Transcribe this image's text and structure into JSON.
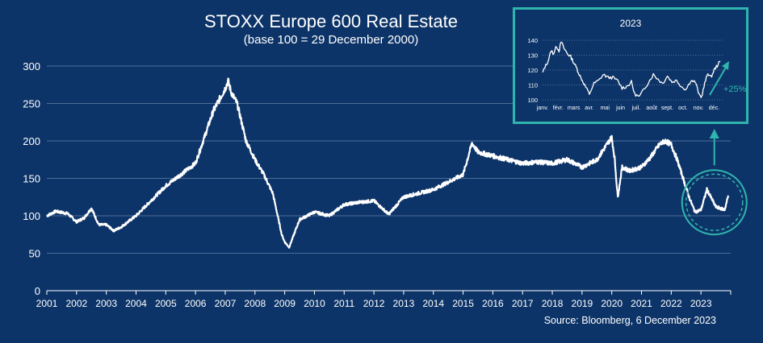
{
  "chart_data": [
    {
      "type": "line",
      "title": "STOXX Europe 600 Real Estate",
      "subtitle": "(base 100 = 29 December 2000)",
      "xlabel": "",
      "ylabel": "",
      "ylim": [
        0,
        300
      ],
      "xlim": [
        2001,
        2024
      ],
      "y_ticks": [
        "0",
        "50",
        "100",
        "150",
        "200",
        "250",
        "300"
      ],
      "x_ticks": [
        "2001",
        "2002",
        "2003",
        "2004",
        "2005",
        "2006",
        "2007",
        "2008",
        "2009",
        "2010",
        "2011",
        "2012",
        "2013",
        "2014",
        "2015",
        "2016",
        "2017",
        "2018",
        "2019",
        "2020",
        "2021",
        "2022",
        "2023"
      ],
      "grid": "horizontal",
      "line_color": "#ffffff",
      "series": [
        {
          "x": [
            2001.0,
            2001.3,
            2001.7,
            2002.0,
            2002.25,
            2002.5,
            2002.75,
            2003.0,
            2003.25,
            2003.5,
            2004.0,
            2004.5,
            2005.0,
            2005.5,
            2006.0,
            2006.3,
            2006.6,
            2007.0,
            2007.1,
            2007.2,
            2007.4,
            2007.7,
            2008.0,
            2008.3,
            2008.6,
            2008.9,
            2009.0,
            2009.15,
            2009.5,
            2010.0,
            2010.5,
            2011.0,
            2011.5,
            2012.0,
            2012.5,
            2013.0,
            2013.5,
            2014.0,
            2014.5,
            2015.0,
            2015.3,
            2015.5,
            2016.0,
            2016.5,
            2017.0,
            2017.5,
            2018.0,
            2018.5,
            2019.0,
            2019.5,
            2020.0,
            2020.1,
            2020.2,
            2020.35,
            2020.6,
            2021.0,
            2021.3,
            2021.6,
            2021.8,
            2022.0,
            2022.2,
            2022.4,
            2022.6,
            2022.8,
            2023.0,
            2023.2,
            2023.5,
            2023.8,
            2023.92
          ],
          "y": [
            100,
            106,
            103,
            92,
            97,
            110,
            88,
            88,
            80,
            85,
            100,
            120,
            140,
            155,
            170,
            205,
            240,
            270,
            280,
            265,
            250,
            200,
            175,
            155,
            130,
            75,
            65,
            58,
            95,
            105,
            100,
            115,
            118,
            120,
            102,
            125,
            130,
            135,
            145,
            155,
            197,
            185,
            180,
            175,
            170,
            172,
            170,
            175,
            165,
            175,
            205,
            175,
            125,
            165,
            160,
            165,
            178,
            195,
            200,
            195,
            175,
            150,
            125,
            105,
            108,
            135,
            112,
            108,
            127
          ]
        }
      ],
      "annotation": "",
      "source": "Source: Bloomberg, 6 December 2023"
    },
    {
      "type": "line",
      "title": "2023",
      "ylim": [
        100,
        140
      ],
      "y_ticks": [
        "100",
        "110",
        "120",
        "130",
        "140"
      ],
      "x_ticks": [
        "janv.",
        "févr.",
        "mars",
        "avr.",
        "mai",
        "juin",
        "juil.",
        "août",
        "sept.",
        "oct.",
        "nov.",
        "déc."
      ],
      "grid": "horizontal-dotted",
      "line_color": "#ffffff",
      "annotation": "+25%",
      "annotation_color": "#2fb5ad",
      "series": [
        {
          "x": [
            0.0,
            0.15,
            0.35,
            0.55,
            0.7,
            0.9,
            1.05,
            1.2,
            1.4,
            1.6,
            1.8,
            2.0,
            2.2,
            2.4,
            2.6,
            2.8,
            3.0,
            3.3,
            3.6,
            3.9,
            4.2,
            4.5,
            4.8,
            5.1,
            5.4,
            5.7,
            5.9,
            6.2,
            6.5,
            6.8,
            7.1,
            7.4,
            7.7,
            8.0,
            8.3,
            8.6,
            8.9,
            9.2,
            9.5,
            9.8,
            10.05,
            10.2,
            10.4,
            10.6,
            10.8,
            11.0,
            11.2,
            11.4
          ],
          "y": [
            118,
            122,
            126,
            133,
            131,
            136,
            133,
            139,
            134,
            131,
            129,
            125,
            121,
            116,
            112,
            108,
            104,
            111,
            113,
            117,
            115,
            115,
            113,
            108,
            109,
            112,
            104,
            102,
            107,
            112,
            117,
            114,
            111,
            116,
            112,
            113,
            109,
            107,
            113,
            112,
            103,
            102,
            111,
            118,
            115,
            120,
            123,
            126
          ]
        }
      ]
    }
  ]
}
